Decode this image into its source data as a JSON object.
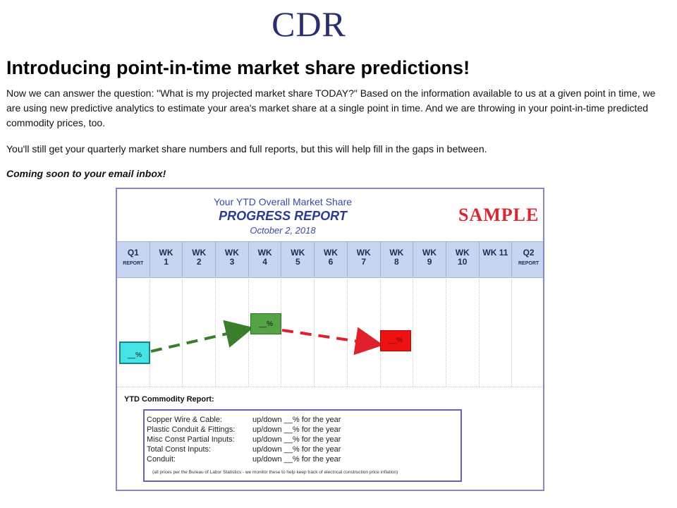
{
  "logo": {
    "text": "CDR"
  },
  "headline": "Introducing point-in-time market share predictions!",
  "paragraphs": {
    "p1": "Now we can answer the question: \"What is my projected market share TODAY?\"  Based on the information available to us at a given point in time, we are using new predictive analytics to estimate your area's market share at a single point in time. And we are throwing in your point-in-time predicted commodity prices, too.",
    "p2": "You'll still get your quarterly market share numbers and full reports, but this will help fill in the gaps in between.",
    "p3": "Coming soon to your email inbox!"
  },
  "report": {
    "ytd_title": "Your YTD Overall Market Share",
    "progress_title": "PROGRESS REPORT",
    "date": "October 2, 2018",
    "sample_label": "SAMPLE",
    "columns": [
      {
        "top": "Q1",
        "bottom": "REPORT"
      },
      {
        "top": "WK",
        "bottom": "1"
      },
      {
        "top": "WK",
        "bottom": "2"
      },
      {
        "top": "WK",
        "bottom": "3"
      },
      {
        "top": "WK",
        "bottom": "4"
      },
      {
        "top": "WK",
        "bottom": "5"
      },
      {
        "top": "WK",
        "bottom": "6"
      },
      {
        "top": "WK",
        "bottom": "7"
      },
      {
        "top": "WK",
        "bottom": "8"
      },
      {
        "top": "WK",
        "bottom": "9"
      },
      {
        "top": "WK",
        "bottom": "10"
      },
      {
        "top": "WK 11",
        "bottom": ""
      },
      {
        "top": "Q2",
        "bottom": "REPORT"
      }
    ],
    "markers": {
      "q1": "__%",
      "wk4": "__%",
      "wk8": "__%"
    },
    "colors": {
      "q1": "#45e3e3",
      "wk4": "#56a346",
      "wk8": "#ee1111",
      "up_arrow": "#3a7d2c",
      "down_arrow": "#e0202a"
    },
    "commodity": {
      "title": "YTD Commodity Report:",
      "rows": [
        {
          "name": "Copper Wire & Cable:",
          "value": "up/down __% for the year"
        },
        {
          "name": "Plastic Conduit & Fittings:",
          "value": "up/down __% for the year"
        },
        {
          "name": "Misc Const Partial Inputs:",
          "value": "up/down __% for the year"
        },
        {
          "name": "Total Const Inputs:",
          "value": "up/down __% for the year"
        },
        {
          "name": "Conduit:",
          "value": "up/down __% for the year"
        }
      ],
      "footnote": "(all prices per the Bureau of Labor Statistics - we monitor these to help keep track of electrical construction price inflation)"
    }
  }
}
